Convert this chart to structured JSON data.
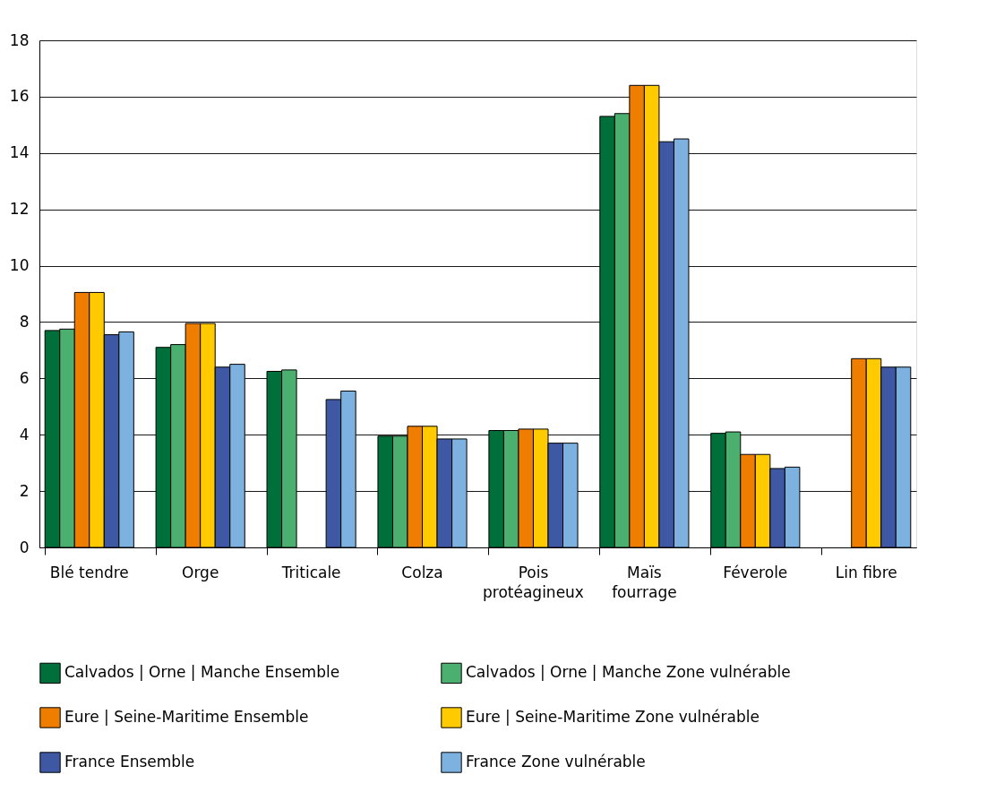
{
  "chart_data": {
    "type": "bar",
    "categories": [
      "Blé tendre",
      "Orge",
      "Triticale",
      "Colza",
      "Pois\nprotéagineux",
      "Maïs\nfourrage",
      "Féverole",
      "Lin fibre"
    ],
    "series": [
      {
        "name": "Calvados | Orne | Manche Ensemble",
        "color": "#006f3a",
        "values": [
          7.7,
          7.1,
          6.25,
          3.95,
          4.15,
          15.3,
          4.05,
          null
        ]
      },
      {
        "name": "Calvados | Orne | Manche Zone vulnérable",
        "color": "#4bb06f",
        "values": [
          7.75,
          7.2,
          6.3,
          3.95,
          4.15,
          15.4,
          4.1,
          null
        ]
      },
      {
        "name": "Eure | Seine-Maritime Ensemble",
        "color": "#ef7d00",
        "values": [
          9.05,
          7.95,
          null,
          4.3,
          4.2,
          16.4,
          3.3,
          6.7
        ]
      },
      {
        "name": "Eure | Seine-Maritime Zone vulnérable",
        "color": "#ffcb00",
        "values": [
          9.05,
          7.95,
          null,
          4.3,
          4.2,
          16.4,
          3.3,
          6.7
        ]
      },
      {
        "name": "France Ensemble",
        "color": "#3e58a3",
        "values": [
          7.55,
          6.4,
          5.25,
          3.85,
          3.7,
          14.4,
          2.8,
          6.4
        ]
      },
      {
        "name": "France Zone vulnérable",
        "color": "#7db2e0",
        "values": [
          7.65,
          6.5,
          5.55,
          3.85,
          3.7,
          14.5,
          2.85,
          6.4
        ]
      }
    ],
    "ylim": [
      0,
      18
    ],
    "yticks": [
      0,
      2,
      4,
      6,
      8,
      10,
      12,
      14,
      16,
      18
    ],
    "grid": "y",
    "legend": "bottom"
  }
}
